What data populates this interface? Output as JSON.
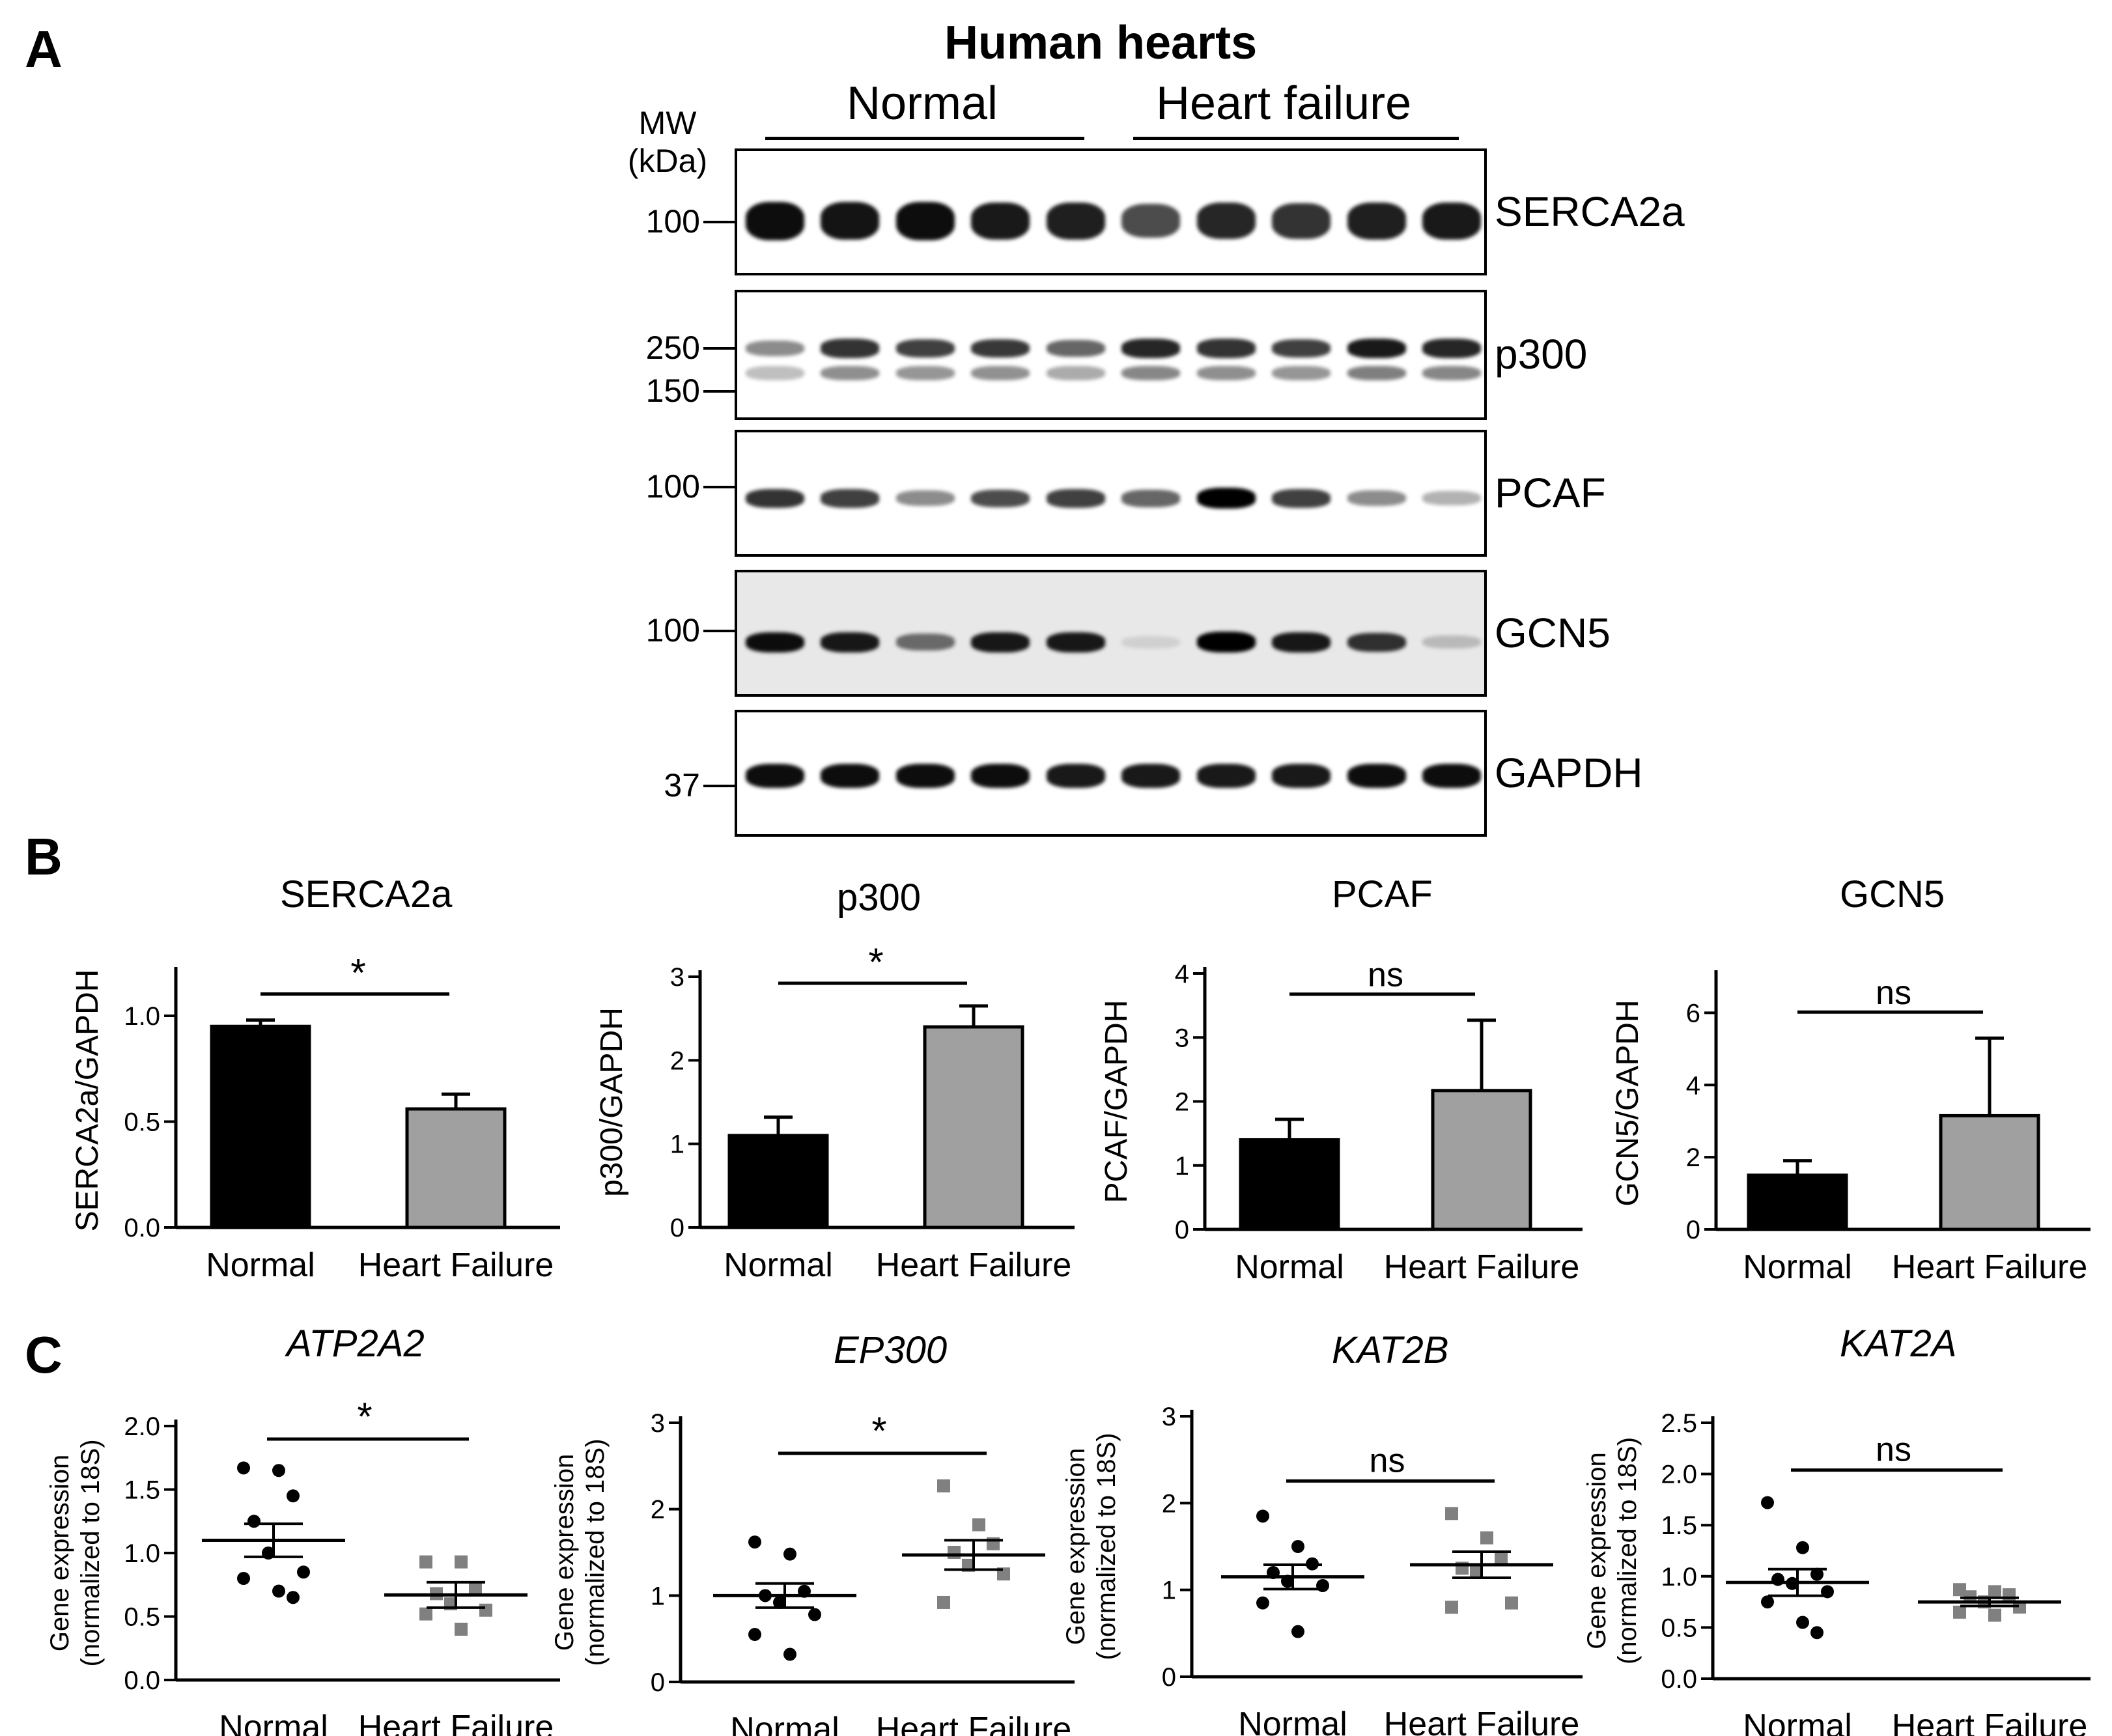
{
  "panel_labels": [
    "A",
    "B",
    "C"
  ],
  "panelA": {
    "title": "Human hearts",
    "groups": [
      "Normal",
      "Heart failure"
    ],
    "mw_header": [
      "MW",
      "(kDa)"
    ],
    "blots": [
      {
        "protein": "SERCA2a",
        "markers": [
          "100"
        ],
        "intensity": [
          0.95,
          0.92,
          0.95,
          0.9,
          0.88,
          0.7,
          0.85,
          0.8,
          0.88,
          0.9
        ]
      },
      {
        "protein": "p300",
        "markers": [
          "250",
          "150"
        ],
        "intensity": [
          0.45,
          0.8,
          0.75,
          0.78,
          0.6,
          0.85,
          0.8,
          0.75,
          0.9,
          0.85
        ]
      },
      {
        "protein": "PCAF",
        "markers": [
          "100"
        ],
        "intensity": [
          0.8,
          0.75,
          0.45,
          0.7,
          0.75,
          0.6,
          1.0,
          0.75,
          0.45,
          0.3
        ]
      },
      {
        "protein": "GCN5",
        "markers": [
          "100"
        ],
        "intensity": [
          0.95,
          0.9,
          0.55,
          0.9,
          0.9,
          0.1,
          1.0,
          0.9,
          0.8,
          0.2
        ]
      },
      {
        "protein": "GAPDH",
        "markers": [
          "37"
        ],
        "intensity": [
          0.95,
          0.95,
          0.95,
          0.95,
          0.9,
          0.9,
          0.9,
          0.9,
          0.95,
          0.95
        ]
      }
    ]
  },
  "panelB_titles": [
    "SERCA2a",
    "p300",
    "PCAF",
    "GCN5"
  ],
  "panelC_titles": [
    "ATP2A2",
    "EP300",
    "KAT2B",
    "KAT2A"
  ],
  "chart_data": [
    {
      "type": "bar",
      "title": "SERCA2a",
      "ylabel": "SERCA2a/GAPDH",
      "categories": [
        "Normal",
        "Heart Failure"
      ],
      "values": [
        0.95,
        0.56
      ],
      "errors": [
        0.03,
        0.07
      ],
      "colors": [
        "#000000",
        "#a0a0a0"
      ],
      "ylim": [
        0,
        1.2
      ],
      "yticks": [
        "0.0",
        "0.5",
        "1.0"
      ],
      "significance": "*"
    },
    {
      "type": "bar",
      "title": "p300",
      "ylabel": "p300/GAPDH",
      "categories": [
        "Normal",
        "Heart Failure"
      ],
      "values": [
        1.1,
        2.4
      ],
      "errors": [
        0.22,
        0.25
      ],
      "colors": [
        "#000000",
        "#a0a0a0"
      ],
      "ylim": [
        0,
        3
      ],
      "yticks": [
        "0",
        "1",
        "2",
        "3"
      ],
      "significance": "*"
    },
    {
      "type": "bar",
      "title": "PCAF",
      "ylabel": "PCAF/GAPDH",
      "categories": [
        "Normal",
        "Heart Failure"
      ],
      "values": [
        1.4,
        2.17
      ],
      "errors": [
        0.32,
        1.1
      ],
      "colors": [
        "#000000",
        "#a0a0a0"
      ],
      "ylim": [
        0,
        4
      ],
      "yticks": [
        "0",
        "1",
        "2",
        "3",
        "4"
      ],
      "significance": "ns"
    },
    {
      "type": "bar",
      "title": "GCN5",
      "ylabel": "GCN5/GAPDH",
      "categories": [
        "Normal",
        "Heart Failure"
      ],
      "values": [
        1.5,
        3.15
      ],
      "errors": [
        0.4,
        2.15
      ],
      "colors": [
        "#000000",
        "#a0a0a0"
      ],
      "ylim": [
        0,
        7
      ],
      "yticks": [
        "0",
        "2",
        "4",
        "6"
      ],
      "significance": "ns"
    },
    {
      "type": "scatter",
      "title": "ATP2A2",
      "ylabel": "Gene expression",
      "ylabel2": "(normalized to 18S)",
      "categories": [
        "Normal",
        "Heart Failure"
      ],
      "ylim": [
        0,
        2.0
      ],
      "yticks": [
        "0.0",
        "0.5",
        "1.0",
        "1.5",
        "2.0"
      ],
      "significance": "*",
      "series": [
        {
          "name": "Normal",
          "values": [
            1.67,
            1.65,
            1.45,
            1.25,
            1.0,
            0.85,
            0.8,
            0.7,
            0.65
          ],
          "mean": 1.1,
          "sem": 0.13
        },
        {
          "name": "Heart Failure",
          "values": [
            0.93,
            0.93,
            0.72,
            0.68,
            0.6,
            0.55,
            0.52,
            0.4
          ],
          "mean": 0.67,
          "sem": 0.1
        }
      ]
    },
    {
      "type": "scatter",
      "title": "EP300",
      "ylabel": "Gene expression",
      "ylabel2": "(normalized to 18S)",
      "categories": [
        "Normal",
        "Heart Failure"
      ],
      "ylim": [
        0,
        3
      ],
      "yticks": [
        "0",
        "1",
        "2",
        "3"
      ],
      "significance": "*",
      "series": [
        {
          "name": "Normal",
          "values": [
            1.62,
            1.48,
            1.05,
            1.0,
            0.92,
            0.78,
            0.55,
            0.32
          ],
          "mean": 1.0,
          "sem": 0.14
        },
        {
          "name": "Heart Failure",
          "values": [
            2.27,
            1.82,
            1.6,
            1.5,
            1.35,
            1.25,
            0.92
          ],
          "mean": 1.47,
          "sem": 0.17
        }
      ]
    },
    {
      "type": "scatter",
      "title": "KAT2B",
      "ylabel": "Gene expression",
      "ylabel2": "(normalized to 18S)",
      "categories": [
        "Normal",
        "Heart Failure"
      ],
      "ylim": [
        0,
        3
      ],
      "yticks": [
        "0",
        "1",
        "2",
        "3"
      ],
      "significance": "ns",
      "series": [
        {
          "name": "Normal",
          "values": [
            1.85,
            1.5,
            1.3,
            1.2,
            1.1,
            1.05,
            0.85,
            0.52
          ],
          "mean": 1.15,
          "sem": 0.14
        },
        {
          "name": "Heart Failure",
          "values": [
            1.88,
            1.6,
            1.35,
            1.25,
            1.2,
            0.85,
            0.8
          ],
          "mean": 1.29,
          "sem": 0.15
        }
      ]
    },
    {
      "type": "scatter",
      "title": "KAT2A",
      "ylabel": "Gene expression",
      "ylabel2": "(normalized to 18S)",
      "categories": [
        "Normal",
        "Heart Failure"
      ],
      "ylim": [
        0,
        2.5
      ],
      "yticks": [
        "0.0",
        "0.5",
        "1.0",
        "1.5",
        "2.0",
        "2.5"
      ],
      "significance": "ns",
      "series": [
        {
          "name": "Normal",
          "values": [
            1.72,
            1.28,
            1.02,
            0.97,
            0.93,
            0.85,
            0.75,
            0.55,
            0.45
          ],
          "mean": 0.94,
          "sem": 0.13
        },
        {
          "name": "Heart Failure",
          "values": [
            0.87,
            0.85,
            0.82,
            0.8,
            0.75,
            0.7,
            0.65,
            0.62
          ],
          "mean": 0.75,
          "sem": 0.04
        }
      ]
    }
  ]
}
